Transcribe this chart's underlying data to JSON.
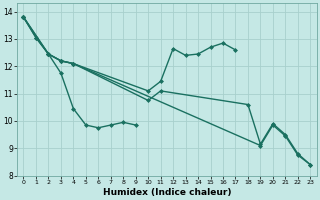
{
  "xlabel": "Humidex (Indice chaleur)",
  "bg_color": "#c5e8e5",
  "grid_color": "#a8d0cc",
  "line_color": "#1a7060",
  "xlim": [
    -0.5,
    23.5
  ],
  "ylim": [
    8.0,
    14.3
  ],
  "xticks": [
    0,
    1,
    2,
    3,
    4,
    5,
    6,
    7,
    8,
    9,
    10,
    11,
    12,
    13,
    14,
    15,
    16,
    17,
    18,
    19,
    20,
    21,
    22,
    23
  ],
  "yticks": [
    8,
    9,
    10,
    11,
    12,
    13,
    14
  ],
  "series": [
    {
      "x": [
        0,
        1,
        2,
        3,
        4,
        5,
        6,
        7,
        8,
        9
      ],
      "y": [
        13.8,
        13.05,
        12.45,
        11.75,
        10.45,
        9.85,
        9.75,
        9.85,
        9.95,
        9.85
      ]
    },
    {
      "x": [
        0,
        1,
        2,
        3,
        4,
        10,
        11,
        12,
        13,
        14,
        15,
        16,
        17
      ],
      "y": [
        13.8,
        13.05,
        12.45,
        12.2,
        12.1,
        11.1,
        11.45,
        12.65,
        12.4,
        12.45,
        12.7,
        12.85,
        12.6
      ]
    },
    {
      "x": [
        0,
        2,
        3,
        4,
        10,
        11,
        18,
        19,
        20,
        21,
        22,
        23
      ],
      "y": [
        13.8,
        12.45,
        12.2,
        12.1,
        10.75,
        11.1,
        10.6,
        9.15,
        9.9,
        9.5,
        8.8,
        8.4
      ]
    },
    {
      "x": [
        0,
        2,
        3,
        4,
        19,
        20,
        21,
        22,
        23
      ],
      "y": [
        13.8,
        12.45,
        12.2,
        12.1,
        9.1,
        9.85,
        9.45,
        8.75,
        8.4
      ]
    }
  ],
  "marker": "D",
  "markersize": 2.0,
  "linewidth": 1.0
}
